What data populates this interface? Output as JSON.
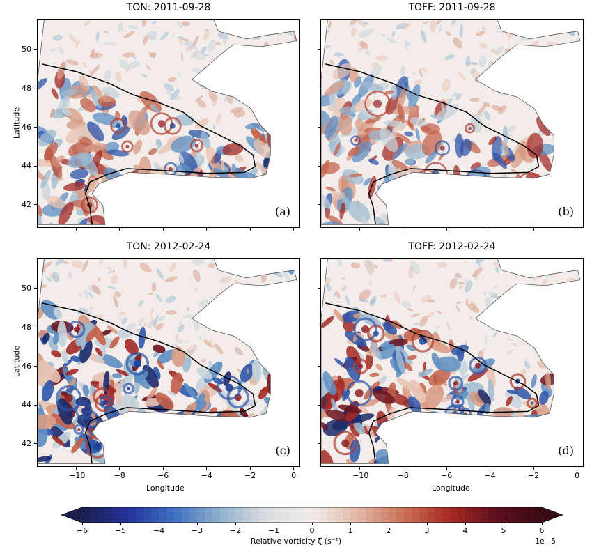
{
  "chart_data": {
    "type": "heatmap",
    "figure": "2x2 grid of relative vorticity maps (Bay of Biscay / Celtic Sea region)",
    "panels": [
      {
        "id": "a",
        "title": "TON: 2011-09-28",
        "label": "(a)",
        "case": "TON",
        "date": "2011-09-28",
        "intensity": 0.6,
        "seed": 11
      },
      {
        "id": "b",
        "title": "TOFF: 2011-09-28",
        "label": "(b)",
        "case": "TOFF",
        "date": "2011-09-28",
        "intensity": 0.5,
        "seed": 23
      },
      {
        "id": "c",
        "title": "TON: 2012-02-24",
        "label": "(c)",
        "case": "TON",
        "date": "2012-02-24",
        "intensity": 1.0,
        "seed": 37
      },
      {
        "id": "d",
        "title": "TOFF: 2012-02-24",
        "label": "(d)",
        "case": "TOFF",
        "date": "2012-02-24",
        "intensity": 0.85,
        "seed": 53
      }
    ],
    "xlabel": "Longitude",
    "ylabel": "Latitude",
    "xlim": [
      -11.8,
      0.3
    ],
    "ylim": [
      40.8,
      51.6
    ],
    "xticks": [
      -10,
      -8,
      -6,
      -4,
      -2,
      0
    ],
    "xtick_labels": [
      "−10",
      "−8",
      "−6",
      "−4",
      "−2",
      "0"
    ],
    "yticks": [
      42,
      44,
      46,
      48,
      50
    ],
    "yticks_labels": [
      "42",
      "44",
      "46",
      "48",
      "50"
    ],
    "colorbar": {
      "label": "Relative vorticity ζ (s⁻¹)",
      "offset": "1e−5",
      "range": [
        -6,
        6
      ],
      "ticks": [
        -6,
        -5,
        -4,
        -3,
        -2,
        -1,
        0,
        1,
        2,
        3,
        4,
        5,
        6
      ],
      "tick_labels": [
        "−6",
        "−5",
        "−4",
        "−3",
        "−2",
        "−1",
        "0",
        "1",
        "2",
        "3",
        "4",
        "5",
        "6"
      ],
      "extend": "both",
      "colormap": "balance (blue–white–red)",
      "colors": [
        "#1a1f4d",
        "#24339c",
        "#3e6fc0",
        "#8fb0cc",
        "#d9dde0",
        "#f1ecea",
        "#e2b7a5",
        "#c86f55",
        "#a62924",
        "#5e0f1d",
        "#3a0b14"
      ]
    },
    "grid": false
  }
}
